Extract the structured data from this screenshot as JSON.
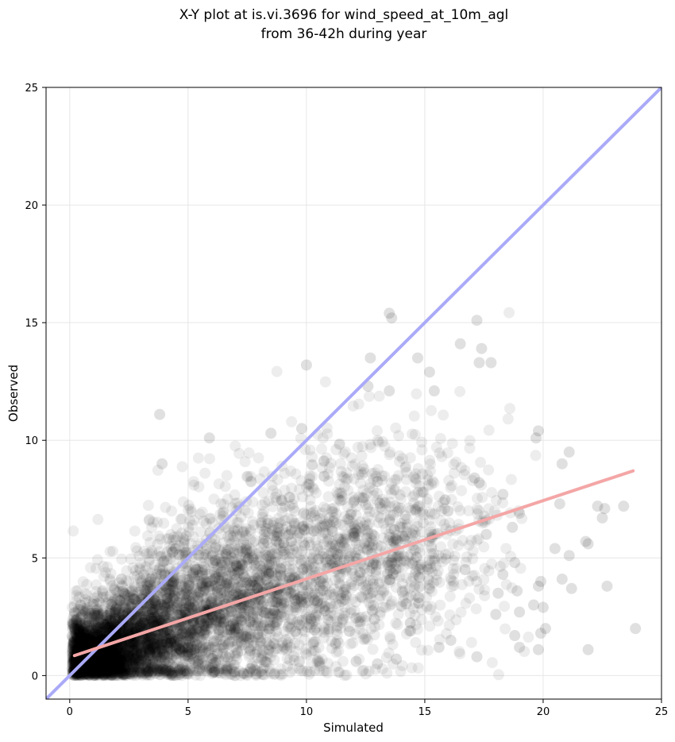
{
  "chart_data": {
    "type": "scatter",
    "title": "X-Y plot at is.vi.3696 for wind_speed_at_10m_agl",
    "subtitle": "from 36-42h during year",
    "xlabel": "Simulated",
    "ylabel": "Observed",
    "xlim": [
      -1,
      25
    ],
    "ylim": [
      -1,
      25
    ],
    "xticks": [
      0,
      5,
      10,
      15,
      20,
      25
    ],
    "yticks": [
      0,
      5,
      10,
      15,
      20,
      25
    ],
    "grid": true,
    "legend": "none",
    "point_color": "#000000",
    "point_alpha": 0.07,
    "point_count_approx": 6000,
    "one_to_one_line": {
      "x": [
        -1,
        25
      ],
      "y": [
        -1,
        25
      ],
      "color": "#aaaaf8"
    },
    "regression_line": {
      "x": [
        0.2,
        23.8
      ],
      "y": [
        0.85,
        8.7
      ],
      "color": "#f4a6a6"
    },
    "highlight_points": [
      {
        "x": 13.5,
        "y": 15.4
      },
      {
        "x": 13.6,
        "y": 15.2
      },
      {
        "x": 17.2,
        "y": 15.1
      },
      {
        "x": 16.5,
        "y": 14.1
      },
      {
        "x": 17.4,
        "y": 13.9
      },
      {
        "x": 12.7,
        "y": 13.5
      },
      {
        "x": 14.7,
        "y": 13.5
      },
      {
        "x": 17.3,
        "y": 13.3
      },
      {
        "x": 17.8,
        "y": 13.3
      },
      {
        "x": 10.0,
        "y": 13.2
      },
      {
        "x": 15.2,
        "y": 12.9
      },
      {
        "x": 12.6,
        "y": 12.3
      },
      {
        "x": 13.5,
        "y": 12.1
      },
      {
        "x": 15.4,
        "y": 12.1
      },
      {
        "x": 3.8,
        "y": 11.1
      },
      {
        "x": 9.8,
        "y": 10.5
      },
      {
        "x": 19.8,
        "y": 10.4
      },
      {
        "x": 19.7,
        "y": 10.1
      },
      {
        "x": 8.5,
        "y": 10.3
      },
      {
        "x": 5.9,
        "y": 10.1
      },
      {
        "x": 21.1,
        "y": 9.5
      },
      {
        "x": 20.8,
        "y": 9.0
      },
      {
        "x": 3.9,
        "y": 9.0
      },
      {
        "x": 17.1,
        "y": 8.4
      },
      {
        "x": 17.3,
        "y": 8.2
      },
      {
        "x": 22.3,
        "y": 7.2
      },
      {
        "x": 23.4,
        "y": 7.2
      },
      {
        "x": 22.6,
        "y": 7.1
      },
      {
        "x": 22.5,
        "y": 6.7
      },
      {
        "x": 20.7,
        "y": 7.3
      },
      {
        "x": 18.3,
        "y": 7.7
      },
      {
        "x": 19.0,
        "y": 6.9
      },
      {
        "x": 18.7,
        "y": 6.3
      },
      {
        "x": 17.6,
        "y": 6.0
      },
      {
        "x": 20.5,
        "y": 5.4
      },
      {
        "x": 21.8,
        "y": 5.7
      },
      {
        "x": 21.9,
        "y": 5.6
      },
      {
        "x": 21.1,
        "y": 5.1
      },
      {
        "x": 18.8,
        "y": 4.8
      },
      {
        "x": 18.3,
        "y": 4.3
      },
      {
        "x": 20.8,
        "y": 4.1
      },
      {
        "x": 19.9,
        "y": 4.0
      },
      {
        "x": 22.7,
        "y": 3.8
      },
      {
        "x": 19.8,
        "y": 3.8
      },
      {
        "x": 21.2,
        "y": 3.7
      },
      {
        "x": 18.9,
        "y": 3.6
      },
      {
        "x": 18.1,
        "y": 3.5
      },
      {
        "x": 19.6,
        "y": 3.0
      },
      {
        "x": 19.0,
        "y": 2.7
      },
      {
        "x": 20.0,
        "y": 2.9
      },
      {
        "x": 18.0,
        "y": 2.6
      },
      {
        "x": 20.1,
        "y": 2.0
      },
      {
        "x": 23.9,
        "y": 2.0
      },
      {
        "x": 19.9,
        "y": 1.8
      },
      {
        "x": 18.8,
        "y": 1.7
      },
      {
        "x": 19.0,
        "y": 1.2
      },
      {
        "x": 19.8,
        "y": 1.1
      },
      {
        "x": 21.9,
        "y": 1.1
      },
      {
        "x": 17.2,
        "y": 0.8
      },
      {
        "x": 15.6,
        "y": 1.2
      },
      {
        "x": 16.1,
        "y": 1.5
      },
      {
        "x": 13.0,
        "y": 0.5
      },
      {
        "x": 13.8,
        "y": 0.7
      },
      {
        "x": 9.7,
        "y": 0.6
      },
      {
        "x": 12.1,
        "y": 0.6
      },
      {
        "x": 14.4,
        "y": 1.9
      }
    ],
    "clusters": [
      {
        "cx": 1.0,
        "cy": 0.8,
        "sx": 0.8,
        "sy": 0.7,
        "n": 1500
      },
      {
        "cx": 2.5,
        "cy": 1.5,
        "sx": 1.2,
        "sy": 1.0,
        "n": 1200
      },
      {
        "cx": 4.5,
        "cy": 2.4,
        "sx": 1.6,
        "sy": 1.5,
        "n": 1000
      },
      {
        "cx": 7.0,
        "cy": 3.5,
        "sx": 2.0,
        "sy": 1.9,
        "n": 900
      },
      {
        "cx": 10.0,
        "cy": 4.6,
        "sx": 2.2,
        "sy": 2.2,
        "n": 700
      },
      {
        "cx": 13.0,
        "cy": 5.6,
        "sx": 2.0,
        "sy": 2.3,
        "n": 450
      },
      {
        "cx": 15.5,
        "cy": 6.0,
        "sx": 1.6,
        "sy": 2.2,
        "n": 200
      }
    ]
  }
}
